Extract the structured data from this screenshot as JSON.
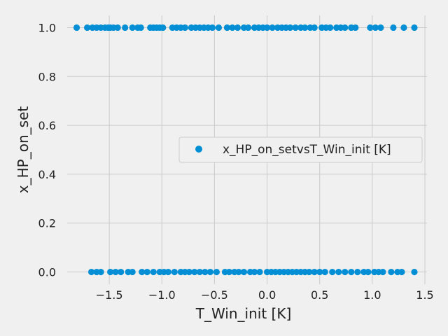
{
  "chart_data": {
    "type": "scatter",
    "xlabel": "T_Win_init [K]",
    "ylabel": "x_HP_on_set",
    "xlim": [
      -1.9,
      1.52
    ],
    "ylim": [
      -0.05,
      1.05
    ],
    "x_ticks": [
      -1.5,
      -1.0,
      -0.5,
      0.0,
      0.5,
      1.0,
      1.5
    ],
    "x_tick_labels": [
      "−1.5",
      "−1.0",
      "−0.5",
      "0.0",
      "0.5",
      "1.0",
      "1.5"
    ],
    "y_ticks": [
      0.0,
      0.2,
      0.4,
      0.6,
      0.8,
      1.0
    ],
    "y_tick_labels": [
      "0.0",
      "0.2",
      "0.4",
      "0.6",
      "0.8",
      "1.0"
    ],
    "grid": true,
    "legend_position": "center-right",
    "series": [
      {
        "name": "x_HP_on_setvsT_Win_init [K]",
        "color": "#008fd5",
        "points": [
          {
            "x": -1.81,
            "y": 1
          },
          {
            "x": -1.71,
            "y": 1
          },
          {
            "x": -1.66,
            "y": 1
          },
          {
            "x": -1.62,
            "y": 1
          },
          {
            "x": -1.58,
            "y": 1
          },
          {
            "x": -1.54,
            "y": 1
          },
          {
            "x": -1.51,
            "y": 1
          },
          {
            "x": -1.49,
            "y": 1
          },
          {
            "x": -1.46,
            "y": 1
          },
          {
            "x": -1.42,
            "y": 1
          },
          {
            "x": -1.35,
            "y": 1
          },
          {
            "x": -1.28,
            "y": 1
          },
          {
            "x": -1.23,
            "y": 1
          },
          {
            "x": -1.2,
            "y": 1
          },
          {
            "x": -1.11,
            "y": 1
          },
          {
            "x": -1.08,
            "y": 1
          },
          {
            "x": -1.05,
            "y": 1
          },
          {
            "x": -1.02,
            "y": 1
          },
          {
            "x": -0.99,
            "y": 1
          },
          {
            "x": -0.9,
            "y": 1
          },
          {
            "x": -0.86,
            "y": 1
          },
          {
            "x": -0.82,
            "y": 1
          },
          {
            "x": -0.78,
            "y": 1
          },
          {
            "x": -0.72,
            "y": 1
          },
          {
            "x": -0.68,
            "y": 1
          },
          {
            "x": -0.64,
            "y": 1
          },
          {
            "x": -0.6,
            "y": 1
          },
          {
            "x": -0.56,
            "y": 1
          },
          {
            "x": -0.52,
            "y": 1
          },
          {
            "x": -0.46,
            "y": 1
          },
          {
            "x": -0.38,
            "y": 1
          },
          {
            "x": -0.33,
            "y": 1
          },
          {
            "x": -0.28,
            "y": 1
          },
          {
            "x": -0.22,
            "y": 1
          },
          {
            "x": -0.18,
            "y": 1
          },
          {
            "x": -0.12,
            "y": 1
          },
          {
            "x": -0.08,
            "y": 1
          },
          {
            "x": -0.04,
            "y": 1
          },
          {
            "x": 0.0,
            "y": 1
          },
          {
            "x": 0.05,
            "y": 1
          },
          {
            "x": 0.1,
            "y": 1
          },
          {
            "x": 0.14,
            "y": 1
          },
          {
            "x": 0.18,
            "y": 1
          },
          {
            "x": 0.22,
            "y": 1
          },
          {
            "x": 0.27,
            "y": 1
          },
          {
            "x": 0.32,
            "y": 1
          },
          {
            "x": 0.36,
            "y": 1
          },
          {
            "x": 0.41,
            "y": 1
          },
          {
            "x": 0.45,
            "y": 1
          },
          {
            "x": 0.52,
            "y": 1
          },
          {
            "x": 0.56,
            "y": 1
          },
          {
            "x": 0.6,
            "y": 1
          },
          {
            "x": 0.66,
            "y": 1
          },
          {
            "x": 0.7,
            "y": 1
          },
          {
            "x": 0.74,
            "y": 1
          },
          {
            "x": 0.8,
            "y": 1
          },
          {
            "x": 0.84,
            "y": 1
          },
          {
            "x": 0.98,
            "y": 1
          },
          {
            "x": 1.03,
            "y": 1
          },
          {
            "x": 1.08,
            "y": 1
          },
          {
            "x": 1.2,
            "y": 1
          },
          {
            "x": 1.3,
            "y": 1
          },
          {
            "x": 1.4,
            "y": 1
          },
          {
            "x": -1.67,
            "y": 0
          },
          {
            "x": -1.62,
            "y": 0
          },
          {
            "x": -1.58,
            "y": 0
          },
          {
            "x": -1.49,
            "y": 0
          },
          {
            "x": -1.44,
            "y": 0
          },
          {
            "x": -1.39,
            "y": 0
          },
          {
            "x": -1.32,
            "y": 0
          },
          {
            "x": -1.28,
            "y": 0
          },
          {
            "x": -1.19,
            "y": 0
          },
          {
            "x": -1.14,
            "y": 0
          },
          {
            "x": -1.08,
            "y": 0
          },
          {
            "x": -1.02,
            "y": 0
          },
          {
            "x": -0.98,
            "y": 0
          },
          {
            "x": -0.94,
            "y": 0
          },
          {
            "x": -0.88,
            "y": 0
          },
          {
            "x": -0.82,
            "y": 0
          },
          {
            "x": -0.78,
            "y": 0
          },
          {
            "x": -0.74,
            "y": 0
          },
          {
            "x": -0.69,
            "y": 0
          },
          {
            "x": -0.64,
            "y": 0
          },
          {
            "x": -0.59,
            "y": 0
          },
          {
            "x": -0.54,
            "y": 0
          },
          {
            "x": -0.48,
            "y": 0
          },
          {
            "x": -0.4,
            "y": 0
          },
          {
            "x": -0.36,
            "y": 0
          },
          {
            "x": -0.31,
            "y": 0
          },
          {
            "x": -0.27,
            "y": 0
          },
          {
            "x": -0.22,
            "y": 0
          },
          {
            "x": -0.16,
            "y": 0
          },
          {
            "x": -0.12,
            "y": 0
          },
          {
            "x": -0.07,
            "y": 0
          },
          {
            "x": 0.0,
            "y": 0
          },
          {
            "x": 0.04,
            "y": 0
          },
          {
            "x": 0.08,
            "y": 0
          },
          {
            "x": 0.12,
            "y": 0
          },
          {
            "x": 0.16,
            "y": 0
          },
          {
            "x": 0.2,
            "y": 0
          },
          {
            "x": 0.24,
            "y": 0
          },
          {
            "x": 0.28,
            "y": 0
          },
          {
            "x": 0.32,
            "y": 0
          },
          {
            "x": 0.36,
            "y": 0
          },
          {
            "x": 0.4,
            "y": 0
          },
          {
            "x": 0.45,
            "y": 0
          },
          {
            "x": 0.5,
            "y": 0
          },
          {
            "x": 0.55,
            "y": 0
          },
          {
            "x": 0.62,
            "y": 0
          },
          {
            "x": 0.68,
            "y": 0
          },
          {
            "x": 0.74,
            "y": 0
          },
          {
            "x": 0.8,
            "y": 0
          },
          {
            "x": 0.86,
            "y": 0
          },
          {
            "x": 0.92,
            "y": 0
          },
          {
            "x": 0.96,
            "y": 0
          },
          {
            "x": 1.02,
            "y": 0
          },
          {
            "x": 1.06,
            "y": 0
          },
          {
            "x": 1.1,
            "y": 0
          },
          {
            "x": 1.18,
            "y": 0
          },
          {
            "x": 1.24,
            "y": 0
          },
          {
            "x": 1.28,
            "y": 0
          },
          {
            "x": 1.4,
            "y": 0
          }
        ]
      }
    ]
  }
}
